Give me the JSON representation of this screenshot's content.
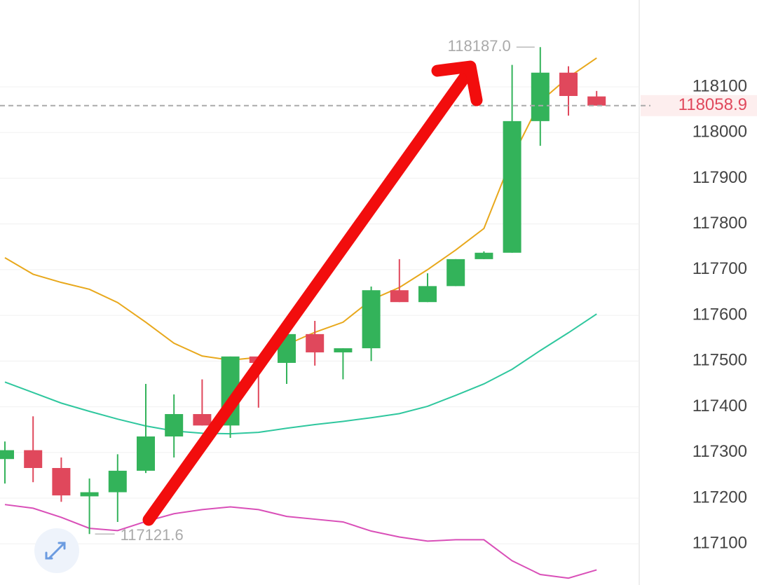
{
  "chart_data": {
    "type": "candlestick",
    "up_color": "#33b35a",
    "down_color": "#e0485c",
    "open": [
      117285.6,
      117305,
      117266,
      117204,
      117213,
      117260,
      117335,
      117384,
      117359,
      117510,
      117496,
      117559,
      117519,
      117528,
      117655,
      117629,
      117664,
      117723,
      117737,
      118025,
      118131,
      118079
    ],
    "close": [
      117305,
      117266,
      117206,
      117213,
      117260,
      117335,
      117384,
      117359,
      117510,
      117496,
      117559,
      117519,
      117528,
      117655,
      117629,
      117664,
      117723,
      117737,
      118025,
      118131,
      118080,
      118058.9
    ],
    "high": [
      117324,
      117379,
      117289,
      117243,
      117296,
      117450,
      117427,
      117460,
      117510,
      117510,
      117559,
      117588,
      117528,
      117663,
      117723,
      117692,
      117723,
      117740,
      118148,
      118187,
      118145,
      118091
    ],
    "low": [
      117232,
      117235,
      117192,
      117121.6,
      117148,
      117255,
      117289,
      117359,
      117332,
      117398,
      117450,
      117490,
      117460,
      117500,
      117629,
      117629,
      117664,
      117723,
      117737,
      117971,
      118037,
      118058.9
    ],
    "moving_averages": [
      {
        "color": "#e8a81c",
        "values": [
          117726,
          117690,
          117672,
          117657,
          117628,
          117585,
          117539,
          117511,
          117502,
          117508,
          117536,
          117563,
          117585,
          117634,
          117661,
          117700,
          117743,
          117790,
          117945,
          118068,
          118121,
          118163
        ]
      },
      {
        "color": "#2fc79e",
        "values": [
          117454,
          117431,
          117408,
          117390,
          117373,
          117358,
          117347,
          117342,
          117341,
          117344,
          117353,
          117361,
          117368,
          117376,
          117385,
          117401,
          117425,
          117450,
          117482,
          117523,
          117562,
          117603
        ]
      },
      {
        "color": "#d94fb8",
        "values": [
          117186,
          117178,
          117158,
          117134,
          117129,
          117149,
          117166,
          117175,
          117181,
          117175,
          117160,
          117154,
          117148,
          117128,
          117115,
          117106,
          117109,
          117109,
          117063,
          117033,
          117025,
          117043
        ]
      }
    ],
    "ylim": [
      117010,
      118290
    ],
    "yticks": [
      117100,
      117200,
      117300,
      117400,
      117500,
      117600,
      117700,
      117800,
      117900,
      118000,
      118100
    ],
    "grid": true,
    "last_price": 118058.9,
    "high_marker": {
      "value": 118187.0,
      "label": "118187.0"
    },
    "low_marker": 117121.6
  }
}
